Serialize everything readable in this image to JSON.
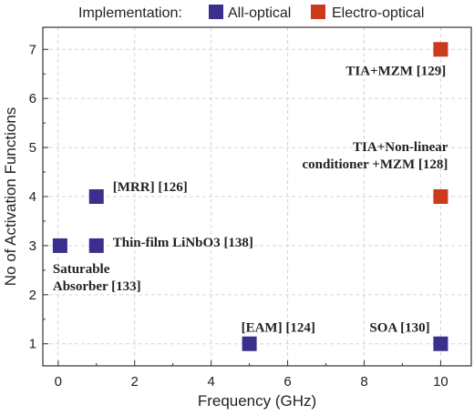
{
  "chart_data": {
    "type": "scatter",
    "title": "",
    "xlabel": "Frequency (GHz)",
    "ylabel": "No of Activation Functions",
    "xlim": [
      -0.4,
      10.8
    ],
    "ylim": [
      0.55,
      7.45
    ],
    "x_ticks": [
      0,
      2,
      4,
      6,
      8,
      10
    ],
    "y_ticks": [
      1,
      2,
      3,
      4,
      5,
      6,
      7
    ],
    "grid": true,
    "legend_title": "Implementation:",
    "legend_position": "top",
    "series": [
      {
        "name": "All-optical",
        "color": "#3a2f8c",
        "points": [
          {
            "x": 1,
            "y": 4,
            "label_lines": [
              "[MRR] [126]"
            ]
          },
          {
            "x": 1,
            "y": 3,
            "label_lines": [
              "Thin-film LiNbO3 [138]"
            ]
          },
          {
            "x": 0.05,
            "y": 3,
            "label_lines": [
              "Saturable",
              "Absorber [133]"
            ]
          },
          {
            "x": 5,
            "y": 1,
            "label_lines": [
              "[EAM] [124]"
            ]
          },
          {
            "x": 10,
            "y": 1,
            "label_lines": [
              "SOA [130]"
            ]
          }
        ]
      },
      {
        "name": "Electro-optical",
        "color": "#cc3a1e",
        "points": [
          {
            "x": 10,
            "y": 7,
            "label_lines": [
              "TIA+MZM [129]"
            ]
          },
          {
            "x": 10,
            "y": 4,
            "label_lines": [
              "TIA+Non-linear",
              "conditioner +MZM [128]"
            ]
          }
        ]
      }
    ]
  }
}
